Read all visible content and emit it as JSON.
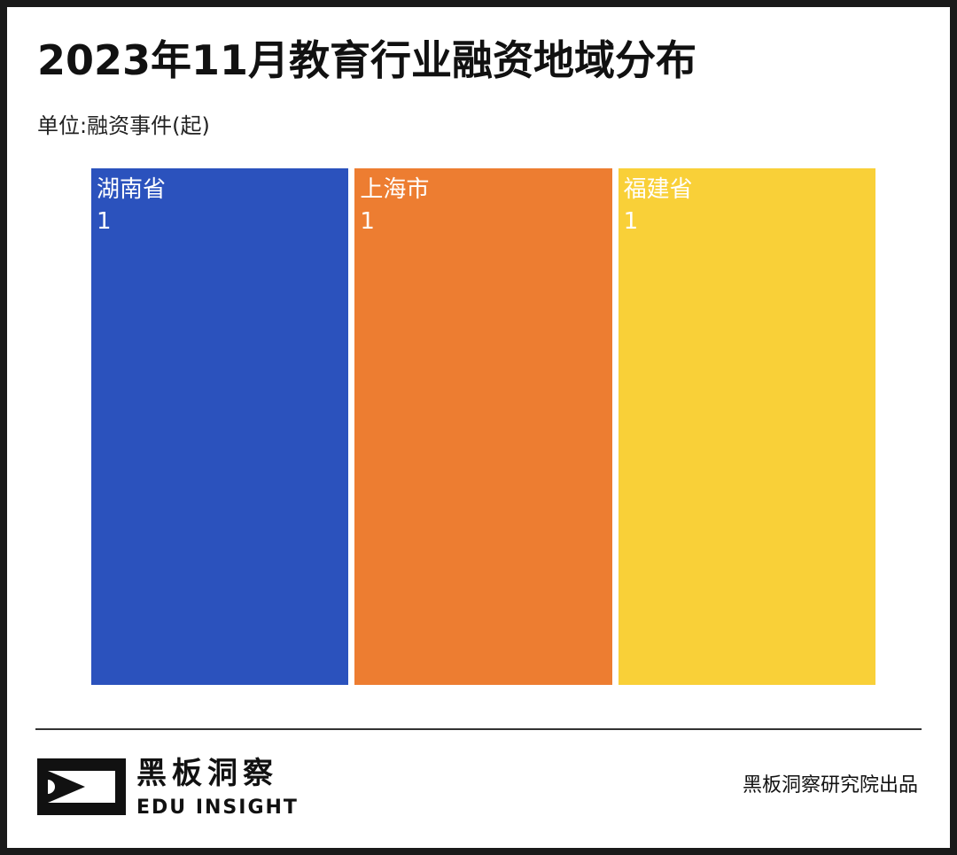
{
  "chart_data": {
    "type": "treemap",
    "title": "2023年11月教育行业融资地域分布",
    "unit_label": "单位:融资事件(起)",
    "categories": [
      "湖南省",
      "上海市",
      "福建省"
    ],
    "values": [
      1,
      1,
      1
    ],
    "colors": [
      "#2b52bd",
      "#ed7d31",
      "#f9d038"
    ]
  },
  "footer": {
    "brand_cn": "黑板洞察",
    "brand_en": "EDU INSIGHT",
    "credit": "黑板洞察研究院出品"
  }
}
